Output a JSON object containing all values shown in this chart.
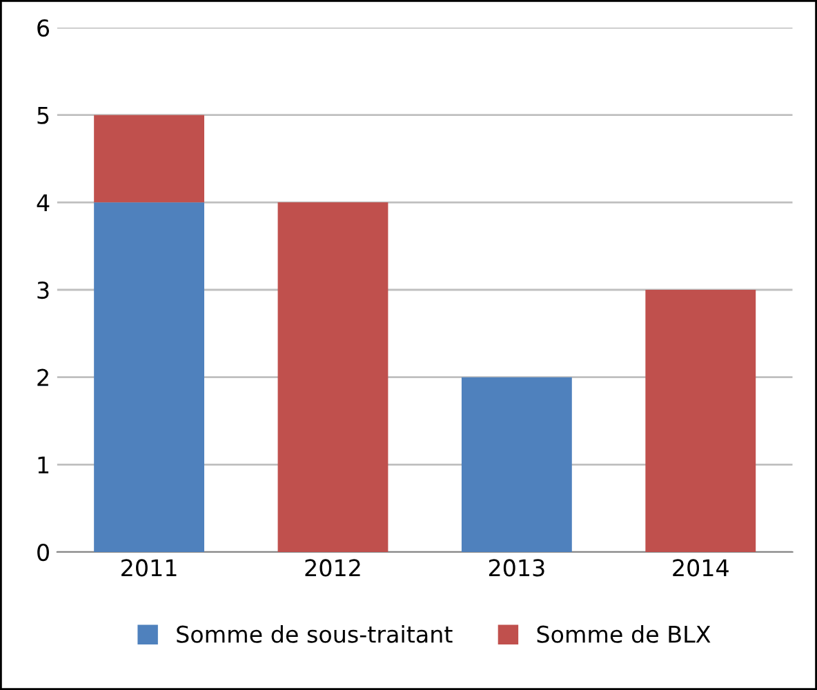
{
  "chart_data": {
    "type": "bar",
    "stacked": true,
    "categories": [
      "2011",
      "2012",
      "2013",
      "2014"
    ],
    "series": [
      {
        "name": "Somme de sous-traitant",
        "color": "#4f81bd",
        "values": [
          4,
          null,
          2,
          null
        ]
      },
      {
        "name": "Somme de BLX",
        "color": "#c0504d",
        "values": [
          1,
          4,
          null,
          3
        ]
      }
    ],
    "ylim": [
      0,
      6
    ],
    "yticks": [
      0,
      1,
      2,
      3,
      4,
      5,
      6
    ],
    "grid": "y",
    "legend": "bottom"
  }
}
